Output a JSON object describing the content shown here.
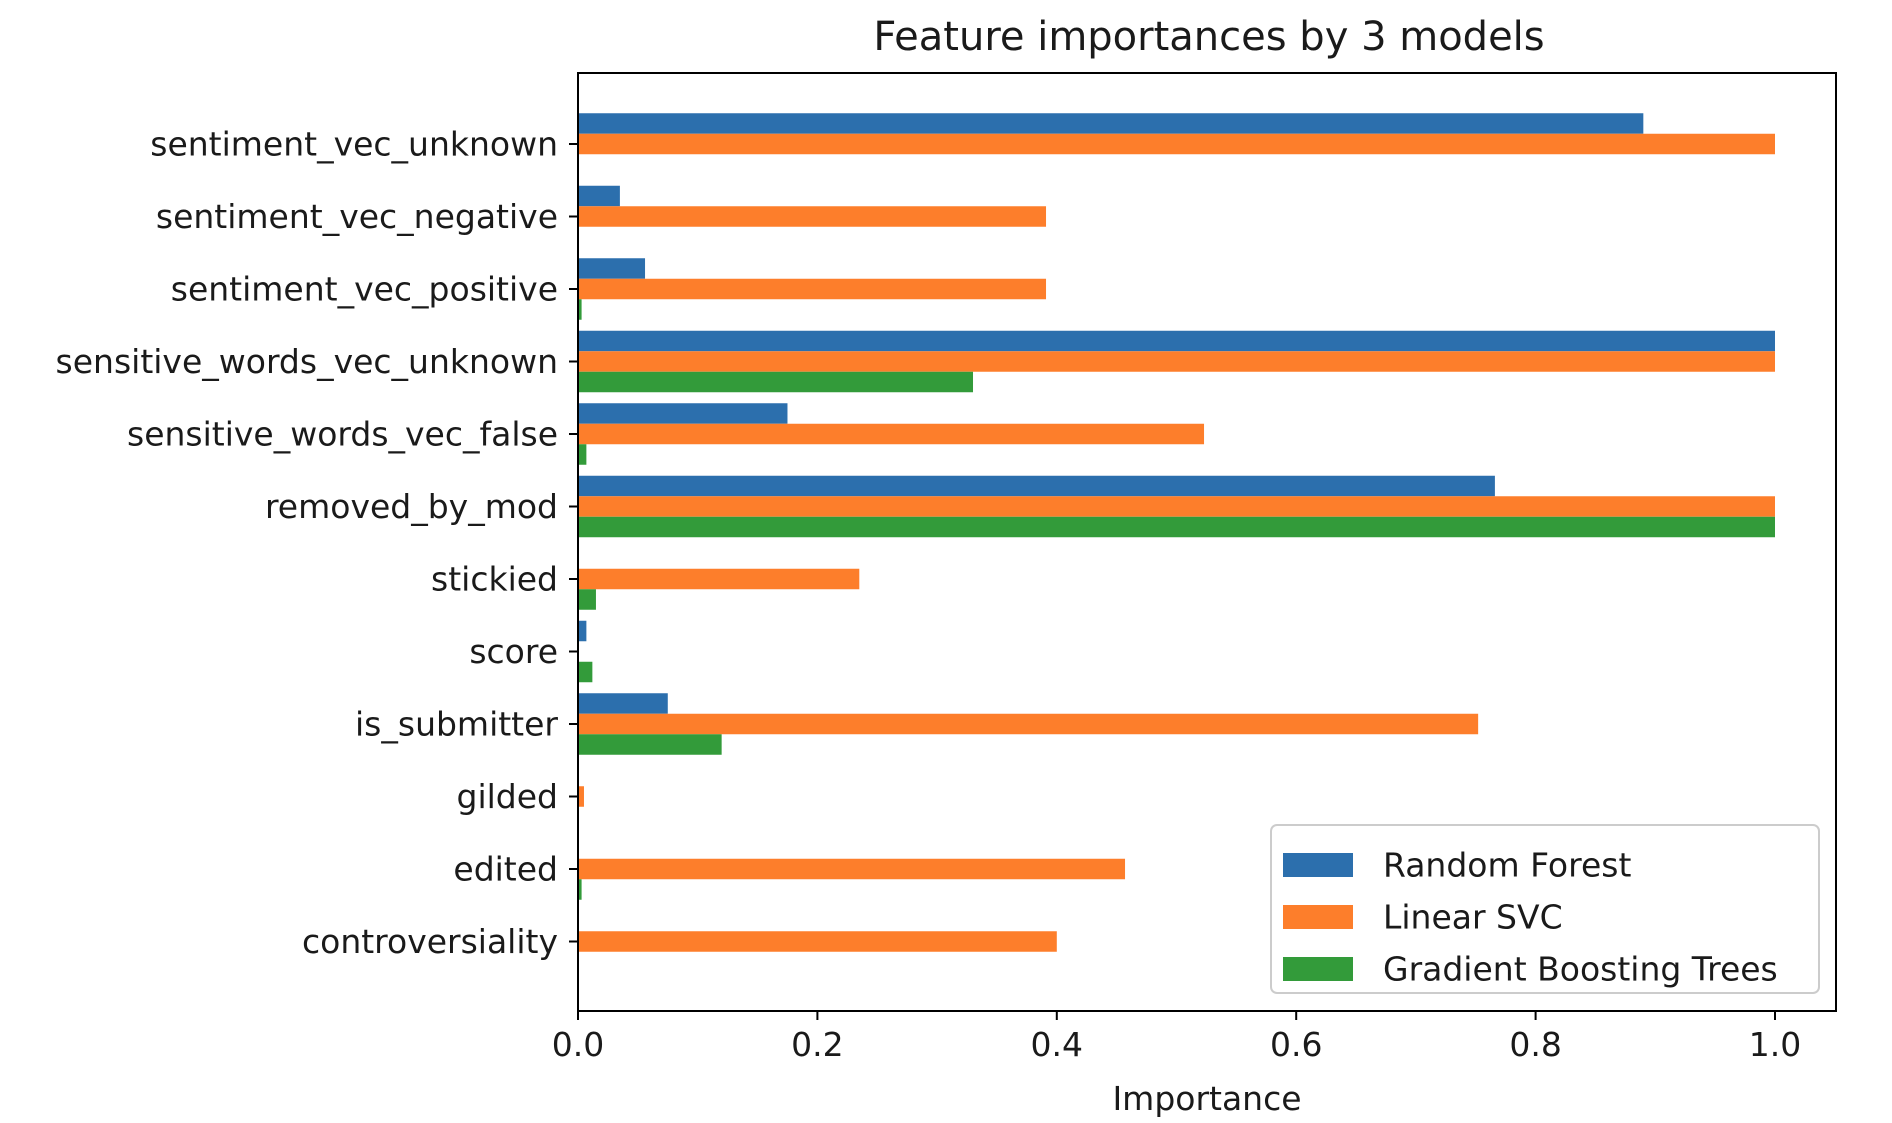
{
  "chart_data": {
    "type": "bar",
    "orientation": "horizontal",
    "title": "Feature importances by 3 models",
    "xlabel": "Importance",
    "ylabel": "",
    "xlim": [
      0,
      1.05
    ],
    "xticks": [
      "0.0",
      "0.2",
      "0.4",
      "0.6",
      "0.8",
      "1.0"
    ],
    "grid": false,
    "legend_position": "lower-right",
    "categories": [
      "sentiment_vec_unknown",
      "sentiment_vec_negative",
      "sentiment_vec_positive",
      "sensitive_words_vec_unknown",
      "sensitive_words_vec_false",
      "removed_by_mod",
      "stickied",
      "score",
      "is_submitter",
      "gilded",
      "edited",
      "controversiality"
    ],
    "series": [
      {
        "name": "Random Forest",
        "color": "#2c6fad",
        "values": [
          0.89,
          0.035,
          0.056,
          1.0,
          0.175,
          0.766,
          0.0,
          0.007,
          0.075,
          0.0,
          0.0,
          0.0
        ]
      },
      {
        "name": "Linear SVC",
        "color": "#fd7e2b",
        "values": [
          1.0,
          0.391,
          0.391,
          1.0,
          0.523,
          1.0,
          0.235,
          0.0,
          0.752,
          0.005,
          0.457,
          0.4
        ]
      },
      {
        "name": "Gradient Boosting Trees",
        "color": "#339b3a",
        "values": [
          0.0,
          0.0,
          0.003,
          0.33,
          0.007,
          1.0,
          0.015,
          0.012,
          0.12,
          0.0,
          0.003,
          0.0
        ]
      }
    ]
  }
}
